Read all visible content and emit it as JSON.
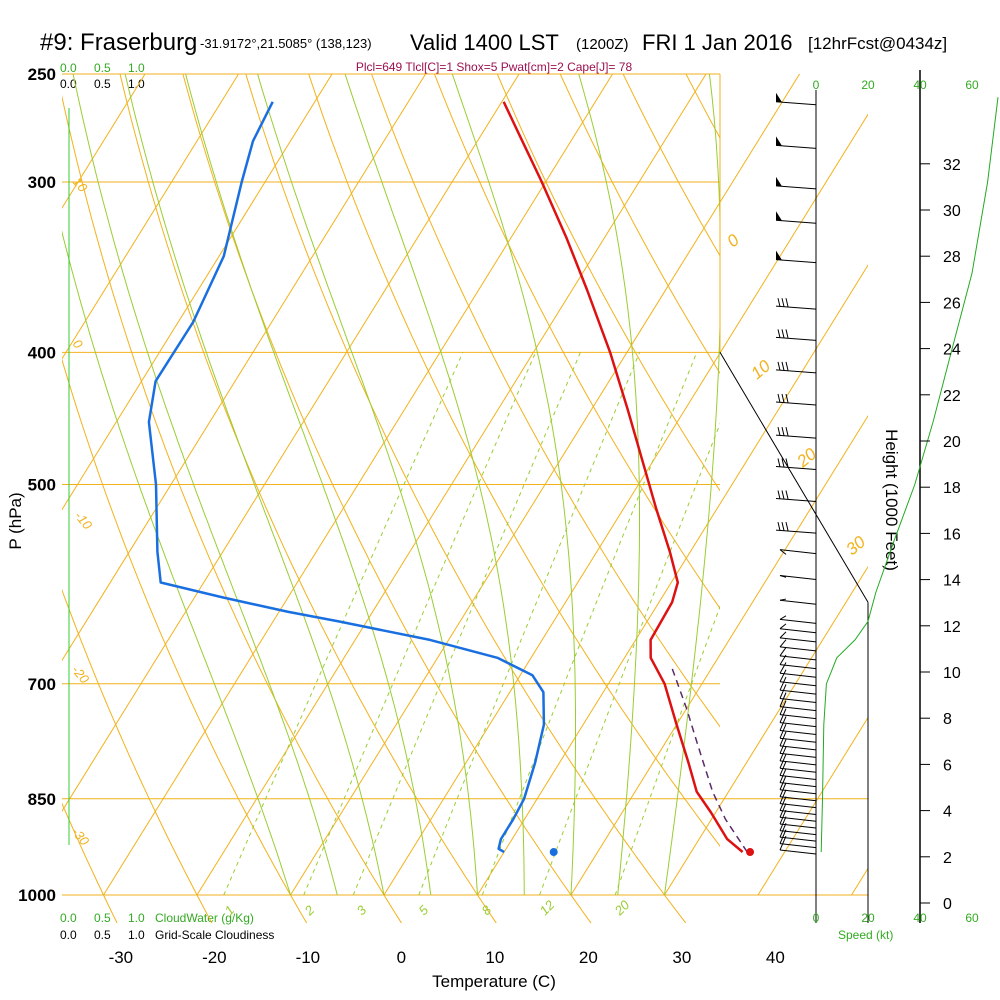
{
  "header": {
    "station": "#9: Fraserburg",
    "coords": "-31.9172°,21.5085° (138,123)",
    "valid": "Valid 1400 LST",
    "utc": "(1200Z)",
    "date": "FRI 1 Jan 2016",
    "forecast": "[12hrFcst@0434z]"
  },
  "indices": "Plcl=649 Tlcl[C]=1 Shox=5 Pwat[cm]=2 Cape[J]= 78",
  "colors": {
    "temperature": "#dd1111",
    "dewpoint": "#1a6fe0",
    "isotherm": "#f2b21c",
    "mixing_ratio": "#9acd32",
    "moist_adiabat": "#9acd32",
    "green_text": "#33aa22",
    "indices_text": "#9b1050",
    "parcel": "#5a2a6a"
  },
  "legends": {
    "cloudwater_scale_top": [
      "0.0",
      "0.5",
      "1.0"
    ],
    "cloudiness_scale_top": [
      "0.0",
      "0.5",
      "1.0"
    ],
    "cloudwater_scale_bottom": [
      "0.0",
      "0.5",
      "1.0"
    ],
    "cloudwater_label": "CloudWater (g/Kg)",
    "cloudiness_scale_bottom": [
      "0.0",
      "0.5",
      "1.0"
    ],
    "cloudiness_label": "Grid-Scale Cloudiness",
    "speed_label": "Speed (kt)"
  },
  "chart_data": {
    "type": "skew-t",
    "title": "#9: Fraserburg Valid 1400 LST (1200Z) FRI 1 Jan 2016 [12hrFcst@0434z]",
    "xlabel": "Temperature (C)",
    "ylabel": "P (hPa)",
    "right_ylabel": "Height (1000 Feet)",
    "x_ticks": [
      "-30",
      "-20",
      "-10",
      "0",
      "10",
      "20",
      "30",
      "40"
    ],
    "x_tick_values": [
      -30,
      -20,
      -10,
      0,
      10,
      20,
      30,
      40
    ],
    "pressure_ticks": [
      "250",
      "300",
      "400",
      "500",
      "700",
      "850",
      "1000"
    ],
    "pressure_tick_values": [
      250,
      300,
      400,
      500,
      700,
      850,
      1000
    ],
    "height_ticks": [
      "0",
      "2",
      "4",
      "6",
      "8",
      "10",
      "12",
      "14",
      "16",
      "18",
      "20",
      "22",
      "24",
      "26",
      "28",
      "30",
      "32"
    ],
    "height_tick_values": [
      0,
      2,
      4,
      6,
      8,
      10,
      12,
      14,
      16,
      18,
      20,
      22,
      24,
      26,
      28,
      30,
      32
    ],
    "speed_ticks_top": [
      "0",
      "20",
      "40",
      "60"
    ],
    "speed_ticks_bottom": [
      "0",
      "20",
      "40",
      "60"
    ],
    "speed_tick_values": [
      0,
      20,
      40,
      60
    ],
    "isotherm_labels": [
      {
        "text": "0",
        "value": 0
      },
      {
        "text": "10",
        "value": 10
      },
      {
        "text": "20",
        "value": 20
      },
      {
        "text": "30",
        "value": 30
      }
    ],
    "dry_adiabat_labels": [
      {
        "text": "10",
        "pressure": 300
      },
      {
        "text": "0",
        "pressure": 400
      },
      {
        "text": "-10",
        "pressure": 520
      },
      {
        "text": "-20",
        "pressure": 680
      },
      {
        "text": "-30",
        "pressure": 900
      }
    ],
    "mixing_ratio_labels": [
      {
        "text": "1",
        "value": 1
      },
      {
        "text": "2",
        "value": 2
      },
      {
        "text": "3",
        "value": 3
      },
      {
        "text": "5",
        "value": 5
      },
      {
        "text": "8",
        "value": 8
      },
      {
        "text": "12",
        "value": 12
      },
      {
        "text": "20",
        "value": 20
      }
    ],
    "temperature_profile": [
      {
        "p": 930,
        "t": 35.5
      },
      {
        "p": 910,
        "t": 33
      },
      {
        "p": 870,
        "t": 29.5
      },
      {
        "p": 840,
        "t": 26.6
      },
      {
        "p": 800,
        "t": 23.8
      },
      {
        "p": 750,
        "t": 20
      },
      {
        "p": 700,
        "t": 16
      },
      {
        "p": 670,
        "t": 12.8
      },
      {
        "p": 650,
        "t": 11.6
      },
      {
        "p": 630,
        "t": 11.5
      },
      {
        "p": 610,
        "t": 11.4
      },
      {
        "p": 590,
        "t": 10.7
      },
      {
        "p": 560,
        "t": 7.8
      },
      {
        "p": 520,
        "t": 3.4
      },
      {
        "p": 480,
        "t": -1.2
      },
      {
        "p": 440,
        "t": -6.2
      },
      {
        "p": 400,
        "t": -11.8
      },
      {
        "p": 360,
        "t": -18.4
      },
      {
        "p": 330,
        "t": -24
      },
      {
        "p": 300,
        "t": -30.4
      },
      {
        "p": 280,
        "t": -35.2
      },
      {
        "p": 262,
        "t": -39.8
      }
    ],
    "dewpoint_profile": [
      {
        "p": 930,
        "t": 10
      },
      {
        "p": 925,
        "t": 9.2
      },
      {
        "p": 910,
        "t": 8.8
      },
      {
        "p": 880,
        "t": 8.8
      },
      {
        "p": 850,
        "t": 8.6
      },
      {
        "p": 800,
        "t": 7.4
      },
      {
        "p": 750,
        "t": 5.8
      },
      {
        "p": 710,
        "t": 3.6
      },
      {
        "p": 690,
        "t": 1.3
      },
      {
        "p": 670,
        "t": -3.6
      },
      {
        "p": 650,
        "t": -12
      },
      {
        "p": 630,
        "t": -23
      },
      {
        "p": 620,
        "t": -29
      },
      {
        "p": 605,
        "t": -37
      },
      {
        "p": 590,
        "t": -44.6
      },
      {
        "p": 560,
        "t": -47
      },
      {
        "p": 500,
        "t": -51.6
      },
      {
        "p": 450,
        "t": -56.5
      },
      {
        "p": 420,
        "t": -58.5
      },
      {
        "p": 380,
        "t": -58.4
      },
      {
        "p": 340,
        "t": -59.5
      },
      {
        "p": 300,
        "t": -62.5
      },
      {
        "p": 280,
        "t": -64
      },
      {
        "p": 262,
        "t": -64.5
      }
    ],
    "parcel_profile": [
      {
        "p": 930,
        "t": 36
      },
      {
        "p": 880,
        "t": 31.5
      },
      {
        "p": 840,
        "t": 28.3
      },
      {
        "p": 780,
        "t": 23.9
      },
      {
        "p": 730,
        "t": 20
      },
      {
        "p": 680,
        "t": 15.6
      }
    ],
    "surface_temperature": {
      "p": 930,
      "t": 36.3
    },
    "surface_dewpoint": {
      "p": 930,
      "t": 15.3
    },
    "height_curve": [
      {
        "p": 930,
        "speed": 2
      },
      {
        "p": 850,
        "speed": 2.5
      },
      {
        "p": 750,
        "speed": 3
      },
      {
        "p": 700,
        "speed": 4
      },
      {
        "p": 670,
        "speed": 8
      },
      {
        "p": 650,
        "speed": 15
      },
      {
        "p": 630,
        "speed": 20
      },
      {
        "p": 600,
        "speed": 23
      },
      {
        "p": 550,
        "speed": 30
      },
      {
        "p": 500,
        "speed": 38
      },
      {
        "p": 450,
        "speed": 45
      },
      {
        "p": 400,
        "speed": 52
      },
      {
        "p": 350,
        "speed": 60
      },
      {
        "p": 300,
        "speed": 66
      },
      {
        "p": 260,
        "speed": 70
      }
    ],
    "wind_barbs_pressure": [
      262,
      282,
      302,
      320,
      342,
      370,
      390,
      412,
      435,
      460,
      485,
      512,
      540,
      560,
      585,
      610,
      630,
      640,
      650,
      660,
      670,
      680,
      690,
      700,
      710,
      720,
      730,
      740,
      750,
      760,
      770,
      780,
      790,
      800,
      810,
      820,
      830,
      840,
      850,
      860,
      870,
      880,
      890,
      900,
      910,
      920,
      930
    ]
  }
}
